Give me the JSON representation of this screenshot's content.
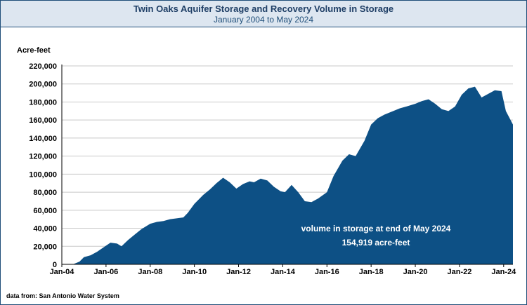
{
  "chart_data": {
    "type": "area",
    "title": "Twin Oaks Aquifer Storage and Recovery Volume in Storage",
    "subtitle": "January 2004 to May 2024",
    "ylabel": "Acre-feet",
    "xlabel": "",
    "ylim": [
      0,
      220000
    ],
    "y_ticks": [
      0,
      20000,
      40000,
      60000,
      80000,
      100000,
      120000,
      140000,
      160000,
      180000,
      200000,
      220000
    ],
    "y_tick_labels": [
      "0",
      "20,000",
      "40,000",
      "60,000",
      "80,000",
      "100,000",
      "120,000",
      "140,000",
      "160,000",
      "180,000",
      "200,000",
      "220,000"
    ],
    "x_ticks": [
      2004,
      2006,
      2008,
      2010,
      2012,
      2014,
      2016,
      2018,
      2020,
      2022,
      2024
    ],
    "x_tick_labels": [
      "Jan-04",
      "Jan-06",
      "Jan-08",
      "Jan-10",
      "Jan-12",
      "Jan-14",
      "Jan-16",
      "Jan-18",
      "Jan-20",
      "Jan-22",
      "Jan-24"
    ],
    "xlim": [
      2004,
      2024.42
    ],
    "grid": "horizontal",
    "fill_color": "#0d5085",
    "series": [
      {
        "x": [
          2004.0,
          2004.5,
          2004.8,
          2005.0,
          2005.3,
          2005.6,
          2005.9,
          2006.2,
          2006.5,
          2006.7,
          2007.0,
          2007.3,
          2007.6,
          2008.0,
          2008.3,
          2008.6,
          2008.9,
          2009.2,
          2009.5,
          2009.7,
          2010.0,
          2010.4,
          2010.7,
          2011.0,
          2011.3,
          2011.6,
          2011.9,
          2012.2,
          2012.5,
          2012.7,
          2013.0,
          2013.3,
          2013.6,
          2013.9,
          2014.1,
          2014.4,
          2014.7,
          2015.0,
          2015.3,
          2015.6,
          2016.0,
          2016.3,
          2016.7,
          2017.0,
          2017.3,
          2017.7,
          2018.0,
          2018.3,
          2018.6,
          2019.0,
          2019.3,
          2019.6,
          2020.0,
          2020.3,
          2020.6,
          2020.9,
          2021.2,
          2021.5,
          2021.8,
          2022.1,
          2022.4,
          2022.7,
          2023.0,
          2023.3,
          2023.6,
          2023.9,
          2024.1,
          2024.42
        ],
        "values": [
          0,
          0,
          3000,
          8000,
          10000,
          14000,
          19000,
          24000,
          23000,
          20000,
          27000,
          33000,
          39000,
          45000,
          47000,
          48000,
          50000,
          51000,
          52000,
          57000,
          67000,
          77000,
          83000,
          90000,
          96000,
          91000,
          84000,
          89000,
          92000,
          91000,
          95000,
          93000,
          86000,
          81000,
          80000,
          88000,
          80000,
          70000,
          69000,
          73000,
          80000,
          98000,
          115000,
          122000,
          120000,
          137000,
          155000,
          162000,
          166000,
          170000,
          173000,
          175000,
          178000,
          181000,
          183000,
          178000,
          172000,
          170000,
          175000,
          188000,
          195000,
          197000,
          185000,
          189000,
          193000,
          192000,
          170000,
          155000
        ]
      }
    ],
    "annotation": {
      "line1": "volume in storage at end of May 2024",
      "line2": "154,919 acre-feet"
    }
  },
  "source_note": "data from:  San Antonio Water System"
}
